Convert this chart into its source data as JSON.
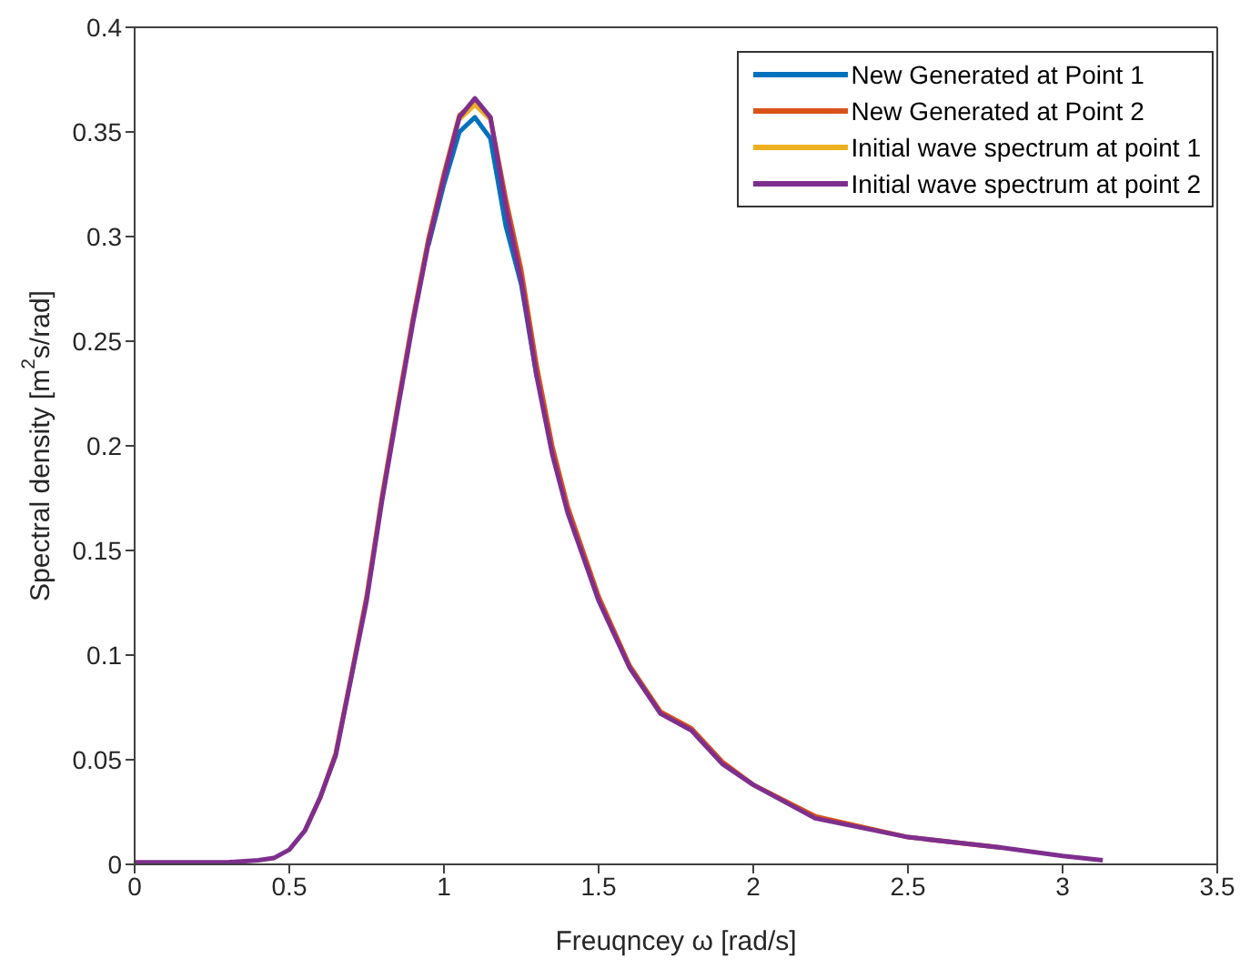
{
  "chart_data": {
    "type": "line",
    "xlabel": "Freuqncey ω [rad/s]",
    "ylabel": "Spectral density [m$^{2}$s/rad]",
    "x": [
      0,
      0.2,
      0.3,
      0.4,
      0.45,
      0.5,
      0.55,
      0.6,
      0.65,
      0.7,
      0.75,
      0.8,
      0.85,
      0.9,
      0.95,
      1.0,
      1.05,
      1.1,
      1.15,
      1.2,
      1.25,
      1.3,
      1.35,
      1.4,
      1.5,
      1.6,
      1.7,
      1.8,
      1.9,
      2.0,
      2.2,
      2.5,
      2.8,
      3.0,
      3.13
    ],
    "series": [
      {
        "name": "New Generated at Point 1",
        "color": "#0072bd",
        "values": [
          null,
          null,
          null,
          null,
          null,
          null,
          null,
          null,
          null,
          null,
          null,
          null,
          null,
          null,
          0.296,
          0.325,
          0.35,
          0.357,
          0.347,
          0.305,
          0.277,
          0.233,
          null,
          null,
          null,
          null,
          null,
          null,
          null,
          null,
          null,
          null,
          null,
          null,
          null
        ]
      },
      {
        "name": "New Generated at Point 2",
        "color": "#d95319",
        "values": [
          null,
          null,
          null,
          null,
          null,
          null,
          0.016,
          0.032,
          0.053,
          0.09,
          0.128,
          0.176,
          0.219,
          0.261,
          0.299,
          0.33,
          0.358,
          0.364,
          0.357,
          0.318,
          0.284,
          0.238,
          0.2,
          0.171,
          0.128,
          0.095,
          0.073,
          0.065,
          0.049,
          0.038,
          0.023,
          0.013,
          0.008,
          null,
          null
        ]
      },
      {
        "name": "Initial wave spectrum at point 1",
        "color": "#edb120",
        "values": [
          null,
          null,
          null,
          null,
          null,
          null,
          null,
          null,
          null,
          null,
          null,
          null,
          null,
          null,
          null,
          null,
          0.356,
          0.363,
          0.356,
          null,
          null,
          null,
          null,
          null,
          null,
          null,
          null,
          null,
          null,
          null,
          null,
          null,
          null,
          null,
          null
        ]
      },
      {
        "name": "Initial wave spectrum at point 2",
        "color": "#7e2f8e",
        "values": [
          0.001,
          0.001,
          0.001,
          0.002,
          0.003,
          0.007,
          0.016,
          0.032,
          0.052,
          0.089,
          0.126,
          0.174,
          0.217,
          0.259,
          0.297,
          0.328,
          0.357,
          0.366,
          0.357,
          0.314,
          0.279,
          0.233,
          0.196,
          0.168,
          0.126,
          0.094,
          0.072,
          0.064,
          0.048,
          0.038,
          0.022,
          0.013,
          0.008,
          0.004,
          0.002
        ]
      }
    ],
    "xlim": [
      0,
      3.5
    ],
    "xticks": [
      0,
      0.5,
      1,
      1.5,
      2,
      2.5,
      3,
      3.5
    ],
    "ylim": [
      0,
      0.4
    ],
    "yticks": [
      0,
      0.05,
      0.1,
      0.15,
      0.2,
      0.25,
      0.3,
      0.35,
      0.4
    ],
    "grid": false,
    "legend": "top right",
    "marker": "none",
    "line_style": "solid"
  }
}
